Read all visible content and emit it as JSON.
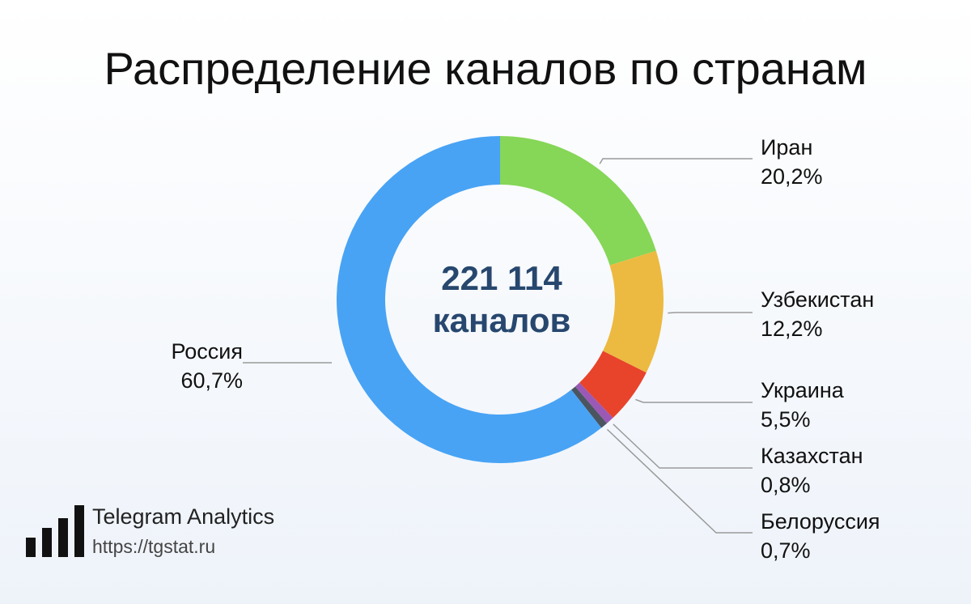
{
  "chart_data": {
    "type": "pie",
    "title": "Распределение каналов по странам",
    "center_value": "221 114",
    "center_unit": "каналов",
    "slices": [
      {
        "name": "Россия",
        "value": 60.7,
        "label": "60,7%",
        "color": "#48a3f4"
      },
      {
        "name": "Иран",
        "value": 20.2,
        "label": "20,2%",
        "color": "#86d658"
      },
      {
        "name": "Узбекистан",
        "value": 12.2,
        "label": "12,2%",
        "color": "#ecba40"
      },
      {
        "name": "Украина",
        "value": 5.5,
        "label": "5,5%",
        "color": "#e8432b"
      },
      {
        "name": "Казахстан",
        "value": 0.8,
        "label": "0,8%",
        "color": "#9b59b6"
      },
      {
        "name": "Белоруссия",
        "value": 0.7,
        "label": "0,7%",
        "color": "#4a5560"
      }
    ]
  },
  "brand": {
    "name": "Telegram Analytics",
    "url": "https://tgstat.ru"
  }
}
